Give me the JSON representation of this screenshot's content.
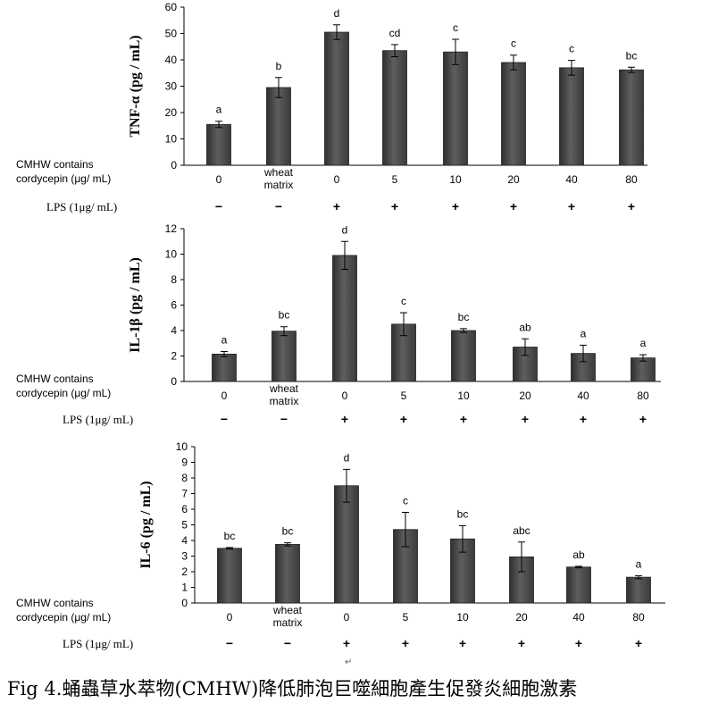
{
  "figure": {
    "caption": "Fig 4.蛹蟲草水萃物(CMHW)降低肺泡巨噬細胞產生促發炎細胞激素",
    "return_mark": "↵"
  },
  "chart_data": [
    {
      "type": "bar",
      "ylabel": "TNF-α (pg / mL)",
      "ylim": [
        0,
        60
      ],
      "yticks": [
        0,
        10,
        20,
        30,
        40,
        50,
        60
      ],
      "categories": [
        "0",
        "wheat matrix",
        "0",
        "5",
        "10",
        "20",
        "40",
        "80"
      ],
      "values": [
        15.5,
        29.5,
        50.5,
        43.5,
        43,
        39,
        37,
        36.2
      ],
      "errors": [
        1.2,
        3.8,
        2.8,
        2.3,
        4.8,
        2.8,
        2.8,
        1.0
      ],
      "significance": [
        "a",
        "b",
        "d",
        "cd",
        "c",
        "c",
        "c",
        "bc"
      ],
      "row_labels": [
        "CMHW contains",
        "cordycepin (μg/ mL)"
      ],
      "lps_label": "LPS (1μg/ mL)",
      "lps": [
        "−",
        "−",
        "+",
        "+",
        "+",
        "+",
        "+",
        "+"
      ],
      "grid": false
    },
    {
      "type": "bar",
      "ylabel": "IL-1β (pg / mL)",
      "ylim": [
        0,
        12
      ],
      "yticks": [
        0,
        2,
        4,
        6,
        8,
        10,
        12
      ],
      "categories": [
        "0",
        "wheat matrix",
        "0",
        "5",
        "10",
        "20",
        "40",
        "80"
      ],
      "values": [
        2.15,
        3.95,
        9.9,
        4.5,
        4.0,
        2.7,
        2.2,
        1.85
      ],
      "errors": [
        0.2,
        0.35,
        1.1,
        0.9,
        0.15,
        0.65,
        0.65,
        0.25
      ],
      "significance": [
        "a",
        "bc",
        "d",
        "c",
        "bc",
        "ab",
        "a",
        "a"
      ],
      "row_labels": [
        "CMHW contains",
        "cordycepin (μg/ mL)"
      ],
      "lps_label": "LPS (1μg/ mL)",
      "lps": [
        "−",
        "−",
        "+",
        "+",
        "+",
        "+",
        "+",
        "+"
      ],
      "grid": false
    },
    {
      "type": "bar",
      "ylabel": "IL-6 (pg / mL)",
      "ylim": [
        0,
        10
      ],
      "yticks": [
        0,
        1,
        2,
        3,
        4,
        5,
        6,
        7,
        8,
        9,
        10
      ],
      "categories": [
        "0",
        "wheat matrix",
        "0",
        "5",
        "10",
        "20",
        "40",
        "80"
      ],
      "values": [
        3.5,
        3.75,
        7.5,
        4.7,
        4.1,
        2.95,
        2.3,
        1.65
      ],
      "errors": [
        0.05,
        0.1,
        1.05,
        1.1,
        0.85,
        0.95,
        0.05,
        0.1
      ],
      "significance": [
        "bc",
        "bc",
        "d",
        "c",
        "bc",
        "abc",
        "ab",
        "a"
      ],
      "row_labels": [
        "CMHW contains",
        "cordycepin (μg/ mL)"
      ],
      "lps_label": "LPS (1μg/ mL)",
      "lps": [
        "−",
        "−",
        "+",
        "+",
        "+",
        "+",
        "+",
        "+"
      ],
      "grid": false
    }
  ],
  "colors": {
    "bar_fill_edge": "#2f2f2f",
    "bar_fill_center": "#5e5e5e",
    "axis": "#000000"
  }
}
